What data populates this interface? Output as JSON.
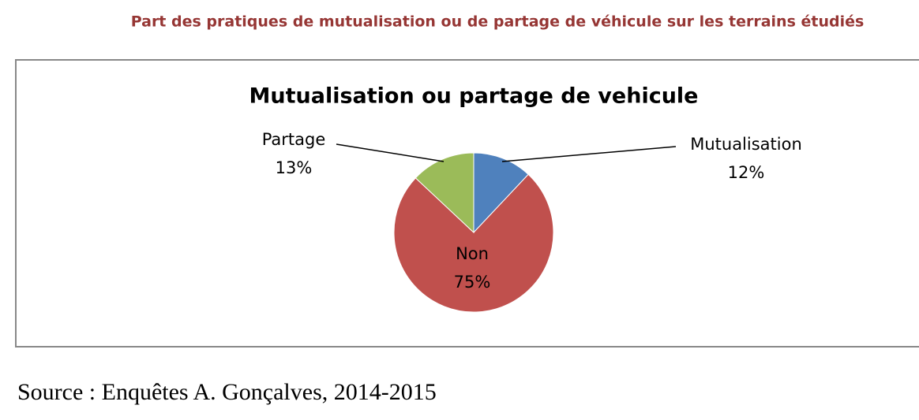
{
  "heading": "Part des pratiques de mutualisation ou de partage de véhicule sur les terrains étudiés",
  "source": "Source : Enquêtes A. Gonçalves, 2014-2015",
  "chart_data": {
    "type": "pie",
    "title": "Mutualisation ou partage de vehicule",
    "categories": [
      "Mutualisation",
      "Non",
      "Partage"
    ],
    "values": [
      12,
      75,
      13
    ],
    "value_labels": [
      "12%",
      "75%",
      "13%"
    ],
    "colors": [
      "#4f81bd",
      "#c0504d",
      "#9bbb59"
    ]
  }
}
